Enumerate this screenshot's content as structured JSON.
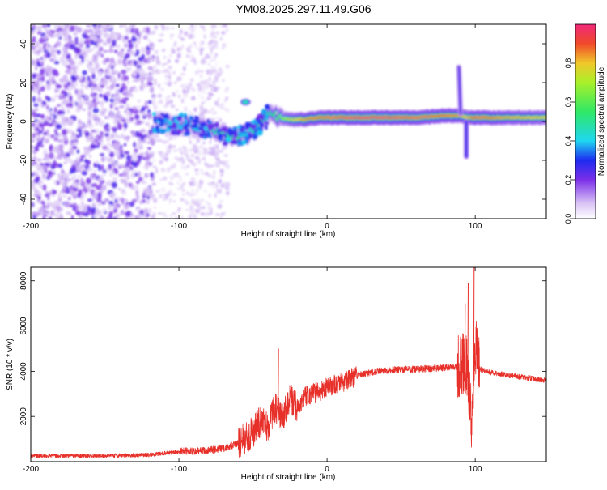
{
  "title": "YM08.2025.297.11.49.G06",
  "colors": {
    "snr_line": "#e8302a",
    "frame": "#000000",
    "background": "#ffffff"
  },
  "chart_data": [
    {
      "type": "heatmap",
      "name": "spectrogram",
      "xlabel": "Height of straight line (km)",
      "ylabel": "Frequency (Hz)",
      "xlim": [
        -200,
        148
      ],
      "ylim": [
        -50,
        50
      ],
      "xticks": [
        -200,
        -100,
        0,
        100
      ],
      "yticks": [
        -40,
        -20,
        0,
        20,
        40
      ],
      "xtick_labels": [
        "-200",
        "-100",
        "0",
        "100"
      ],
      "ytick_labels": [
        "-40",
        "-20",
        "0",
        "20",
        "40"
      ],
      "colorbar": {
        "label": "Normalized spectral amplitude",
        "range": [
          0,
          1
        ],
        "ticks": [
          0.0,
          0.2,
          0.4,
          0.6,
          0.8
        ],
        "tick_labels": [
          "0.0",
          "0.2",
          "0.4",
          "0.6",
          "0.8"
        ],
        "stops": [
          {
            "v": 0.0,
            "c": "#ffffff"
          },
          {
            "v": 0.08,
            "c": "#d8c2f5"
          },
          {
            "v": 0.2,
            "c": "#7b2fe8"
          },
          {
            "v": 0.3,
            "c": "#1e2bf0"
          },
          {
            "v": 0.4,
            "c": "#1fd7f0"
          },
          {
            "v": 0.55,
            "c": "#2fe866"
          },
          {
            "v": 0.7,
            "c": "#a8f02a"
          },
          {
            "v": 0.8,
            "c": "#f0c82a"
          },
          {
            "v": 0.9,
            "c": "#f04a2a"
          },
          {
            "v": 1.0,
            "c": "#f0287a"
          }
        ]
      },
      "ridge": [
        [
          -115,
          0,
          0.35
        ],
        [
          -105,
          -1,
          0.45
        ],
        [
          -95,
          -2,
          0.4
        ],
        [
          -85,
          -3,
          0.45
        ],
        [
          -75,
          -5,
          0.5
        ],
        [
          -65,
          -8,
          0.55
        ],
        [
          -55,
          -7,
          0.55
        ],
        [
          -48,
          -4,
          0.5
        ],
        [
          -43,
          0,
          0.55
        ],
        [
          -38,
          5,
          0.5
        ],
        [
          -33,
          2,
          0.6
        ],
        [
          -25,
          1,
          0.75
        ],
        [
          -15,
          1,
          0.85
        ],
        [
          -5,
          2,
          0.9
        ],
        [
          5,
          2,
          0.95
        ],
        [
          20,
          2,
          1.0
        ],
        [
          40,
          2,
          1.0
        ],
        [
          60,
          2,
          0.95
        ],
        [
          80,
          3,
          0.9
        ],
        [
          90,
          3,
          0.85
        ],
        [
          95,
          2,
          0.8
        ],
        [
          100,
          2,
          0.95
        ],
        [
          120,
          2,
          0.85
        ],
        [
          148,
          2,
          0.8
        ]
      ],
      "features": [
        {
          "x": -55,
          "y": 10,
          "v": 0.45
        },
        {
          "x": 89,
          "y": 28,
          "v": 0.25
        },
        {
          "x": 94,
          "y": -18,
          "v": 0.3
        }
      ]
    },
    {
      "type": "line",
      "name": "snr",
      "xlabel": "Height of straight line (km)",
      "ylabel": "SNR (10 * v/v)",
      "xlim": [
        -200,
        148
      ],
      "ylim": [
        0,
        8600
      ],
      "xticks": [
        -200,
        -100,
        0,
        100
      ],
      "yticks": [
        2000,
        4000,
        6000,
        8000
      ],
      "xtick_labels": [
        "-200",
        "-100",
        "0",
        "100"
      ],
      "ytick_labels": [
        "2000",
        "4000",
        "6000",
        "8000"
      ],
      "series": [
        {
          "name": "SNR",
          "x": [
            -200,
            -150,
            -120,
            -100,
            -80,
            -70,
            -60,
            -50,
            -45,
            -40,
            -35,
            -30,
            -25,
            -20,
            -15,
            -10,
            -5,
            0,
            10,
            20,
            30,
            40,
            60,
            80,
            90,
            94,
            96,
            98,
            100,
            103,
            110,
            120,
            130,
            148
          ],
          "y": [
            250,
            260,
            300,
            450,
            500,
            600,
            800,
            1300,
            1800,
            1500,
            2400,
            1900,
            2800,
            2300,
            2900,
            3000,
            3100,
            3300,
            3500,
            3800,
            3950,
            4050,
            4100,
            4150,
            4200,
            4400,
            3000,
            1500,
            5200,
            4100,
            3950,
            3850,
            3750,
            3600
          ]
        }
      ],
      "peaks": [
        {
          "x": -33,
          "y": 5000
        },
        {
          "x": 93,
          "y": 7000
        },
        {
          "x": 95,
          "y": 7900
        },
        {
          "x": 99,
          "y": 8600
        }
      ]
    }
  ]
}
